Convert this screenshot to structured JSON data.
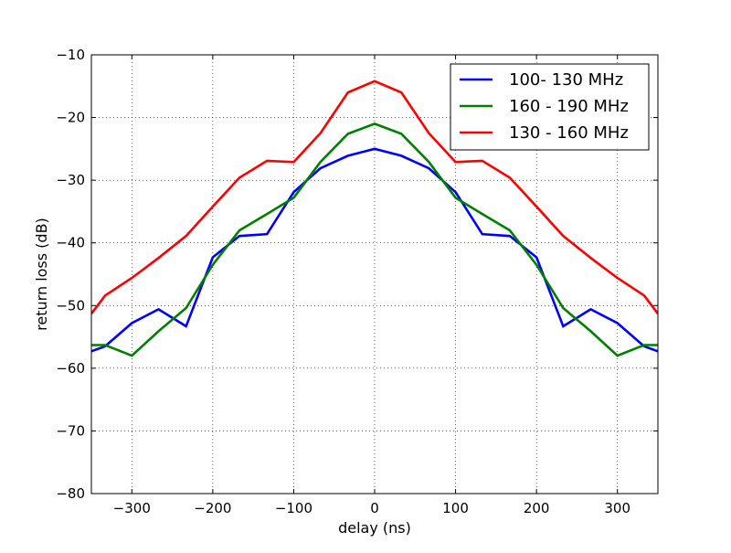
{
  "chart_data": {
    "type": "line",
    "title": "",
    "xlabel": "delay (ns)",
    "ylabel": "return loss (dB)",
    "xlim": [
      -350,
      350
    ],
    "ylim": [
      -80,
      -10
    ],
    "xticks": [
      -300,
      -200,
      -100,
      0,
      100,
      200,
      300
    ],
    "yticks": [
      -80,
      -70,
      -60,
      -50,
      -40,
      -30,
      -20,
      -10
    ],
    "xtick_labels": [
      "−300",
      "−200",
      "−100",
      "0",
      "100",
      "200",
      "300"
    ],
    "ytick_labels": [
      "−80",
      "−70",
      "−60",
      "−50",
      "−40",
      "−30",
      "−20",
      "−10"
    ],
    "grid": true,
    "legend_position": "top-right",
    "x": [
      -350,
      -333,
      -300,
      -267,
      -233,
      -200,
      -167,
      -133,
      -100,
      -67,
      -33,
      0,
      33,
      67,
      100,
      133,
      167,
      200,
      233,
      267,
      300,
      333,
      350
    ],
    "series": [
      {
        "name": "100- 130 MHz",
        "color": "#0000ff",
        "values": [
          -57.3,
          -56.5,
          -52.8,
          -50.6,
          -53.3,
          -42.3,
          -38.9,
          -38.6,
          -31.9,
          -28.1,
          -26.1,
          -25.0,
          -26.1,
          -28.1,
          -31.9,
          -38.6,
          -38.9,
          -42.3,
          -53.3,
          -50.6,
          -52.8,
          -56.5,
          -57.3
        ]
      },
      {
        "name": "160 - 190 MHz",
        "color": "#008000",
        "values": [
          -56.3,
          -56.3,
          -58.0,
          -54.1,
          -50.4,
          -43.5,
          -38.0,
          -35.4,
          -32.8,
          -27.1,
          -22.6,
          -21.0,
          -22.6,
          -27.1,
          -32.8,
          -35.4,
          -38.0,
          -43.5,
          -50.4,
          -54.1,
          -58.0,
          -56.3,
          -56.3
        ]
      },
      {
        "name": "130 - 160 MHz",
        "color": "#ff0000",
        "values": [
          -51.3,
          -48.4,
          -45.6,
          -42.4,
          -38.9,
          -34.2,
          -29.6,
          -26.9,
          -27.1,
          -22.5,
          -16.0,
          -14.2,
          -16.0,
          -22.5,
          -27.1,
          -26.9,
          -29.6,
          -34.2,
          -38.9,
          -42.4,
          -45.6,
          -48.4,
          -51.3
        ]
      }
    ]
  }
}
